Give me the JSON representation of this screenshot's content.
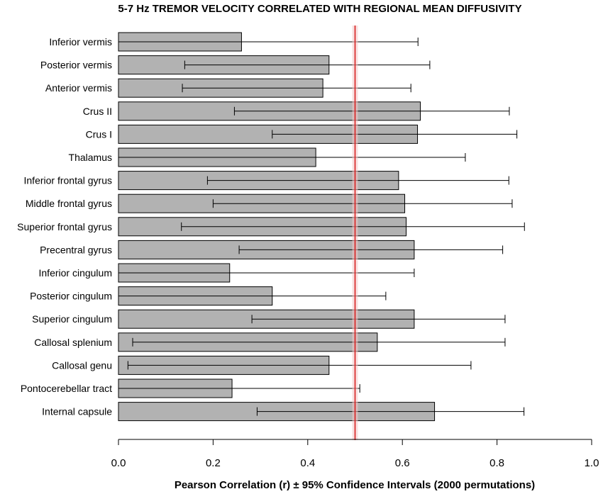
{
  "chart_data": {
    "type": "bar",
    "orientation": "horizontal",
    "title": "5-7 Hz TREMOR VELOCITY CORRELATED WITH REGIONAL MEAN DIFFUSIVITY",
    "xlabel": "Pearson Correlation (r) ± 95% Confidence Intervals (2000 permutations)",
    "ylabel": "",
    "xlim": [
      0.0,
      1.0
    ],
    "xticks": [
      0.0,
      0.2,
      0.4,
      0.6,
      0.8,
      1.0
    ],
    "xtick_labels": [
      "0.0",
      "0.2",
      "0.4",
      "0.6",
      "0.8",
      "1.0"
    ],
    "categories": [
      "Inferior vermis",
      "Posterior vermis",
      "Anterior vermis",
      "Crus II",
      "Crus I",
      "Thalamus",
      "Inferior frontal gyrus",
      "Middle frontal gyrus",
      "Superior frontal gyrus",
      "Precentral gyrus",
      "Inferior cingulum",
      "Posterior cingulum",
      "Superior cingulum",
      "Callosal splenium",
      "Callosal genu",
      "Pontocerebellar tract",
      "Internal capsule"
    ],
    "values": [
      0.26,
      0.445,
      0.432,
      0.638,
      0.632,
      0.417,
      0.592,
      0.605,
      0.608,
      0.625,
      0.235,
      0.325,
      0.625,
      0.547,
      0.445,
      0.24,
      0.668
    ],
    "ci_lower": [
      0.0,
      0.14,
      0.135,
      0.245,
      0.325,
      0.0,
      0.188,
      0.2,
      0.133,
      0.255,
      0.0,
      0.0,
      0.282,
      0.03,
      0.02,
      0.0,
      0.293
    ],
    "ci_upper": [
      0.633,
      0.658,
      0.618,
      0.826,
      0.842,
      0.733,
      0.825,
      0.832,
      0.858,
      0.812,
      0.625,
      0.565,
      0.817,
      0.817,
      0.745,
      0.51,
      0.857
    ],
    "reference_line": {
      "value": 0.5,
      "color": "#d92020"
    },
    "bar_color": "#b2b2b2",
    "bar_edge_color": "#000000",
    "grid": false
  }
}
